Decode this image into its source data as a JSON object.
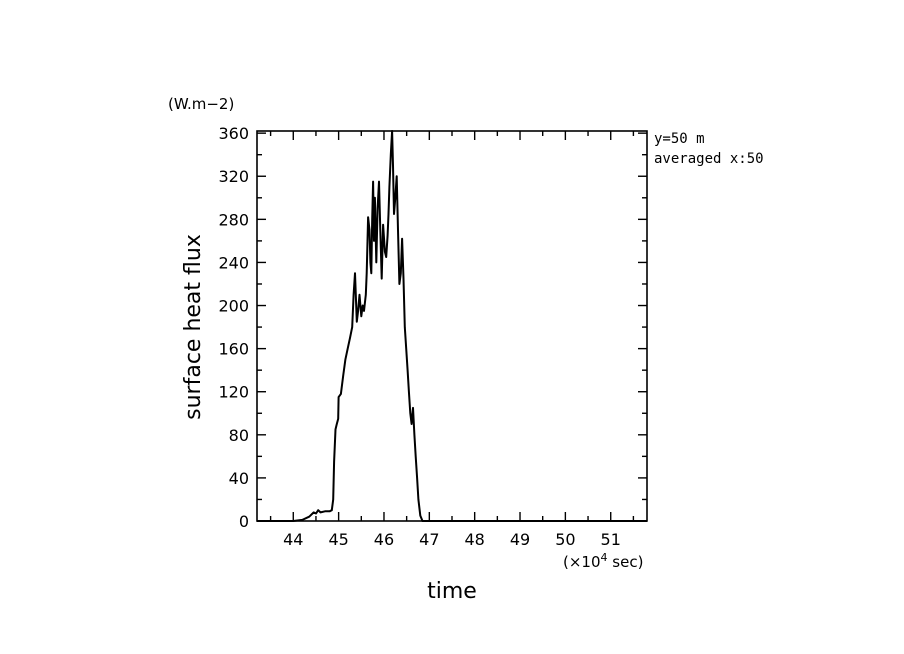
{
  "chart_data": {
    "type": "line",
    "xlabel": "time",
    "ylabel": "surface heat flux",
    "y_unit": "(W.m−2)",
    "x_unit_prefix": "(×10",
    "x_unit_exp": "4",
    "x_unit_suffix": " sec)",
    "annotation_lines": [
      "y=50 m",
      "averaged  x:50"
    ],
    "xlim": [
      43.2,
      51.8
    ],
    "ylim": [
      0,
      362
    ],
    "x_ticks": [
      44,
      45,
      46,
      47,
      48,
      49,
      50,
      51
    ],
    "y_ticks": [
      0,
      40,
      80,
      120,
      160,
      200,
      240,
      280,
      320,
      360
    ],
    "grid": false,
    "series": [
      {
        "x": [
          43.2,
          44.0,
          44.2,
          44.35,
          44.45,
          44.5,
          44.55,
          44.6,
          44.7,
          44.8,
          44.85,
          44.88,
          44.9,
          44.93,
          44.96,
          44.99,
          45.0,
          45.05,
          45.1,
          45.15,
          45.2,
          45.25,
          45.3,
          45.33,
          45.36,
          45.4,
          45.43,
          45.46,
          45.5,
          45.53,
          45.56,
          45.6,
          45.62,
          45.65,
          45.68,
          45.7,
          45.72,
          45.74,
          45.76,
          45.78,
          45.8,
          45.83,
          45.86,
          45.89,
          45.92,
          45.95,
          45.98,
          46.02,
          46.05,
          46.08,
          46.1,
          46.12,
          46.15,
          46.18,
          46.2,
          46.22,
          46.25,
          46.28,
          46.31,
          46.34,
          46.37,
          46.4,
          46.43,
          46.46,
          46.49,
          46.52,
          46.55,
          46.58,
          46.61,
          46.64,
          46.67,
          46.7,
          46.73,
          46.76,
          46.8,
          46.85,
          46.9,
          46.93,
          46.95,
          47.0,
          51.8
        ],
        "y": [
          0,
          0,
          1,
          4,
          8,
          7,
          10,
          8,
          9,
          9,
          10,
          20,
          55,
          85,
          90,
          95,
          115,
          118,
          135,
          150,
          160,
          170,
          180,
          210,
          230,
          185,
          195,
          210,
          190,
          200,
          195,
          210,
          230,
          282,
          270,
          240,
          230,
          280,
          315,
          260,
          300,
          240,
          290,
          315,
          270,
          225,
          275,
          250,
          245,
          265,
          285,
          310,
          340,
          362,
          330,
          285,
          300,
          320,
          270,
          220,
          230,
          262,
          225,
          180,
          160,
          140,
          120,
          100,
          90,
          105,
          80,
          60,
          40,
          20,
          5,
          0,
          0,
          0,
          0,
          0,
          0
        ]
      }
    ]
  }
}
